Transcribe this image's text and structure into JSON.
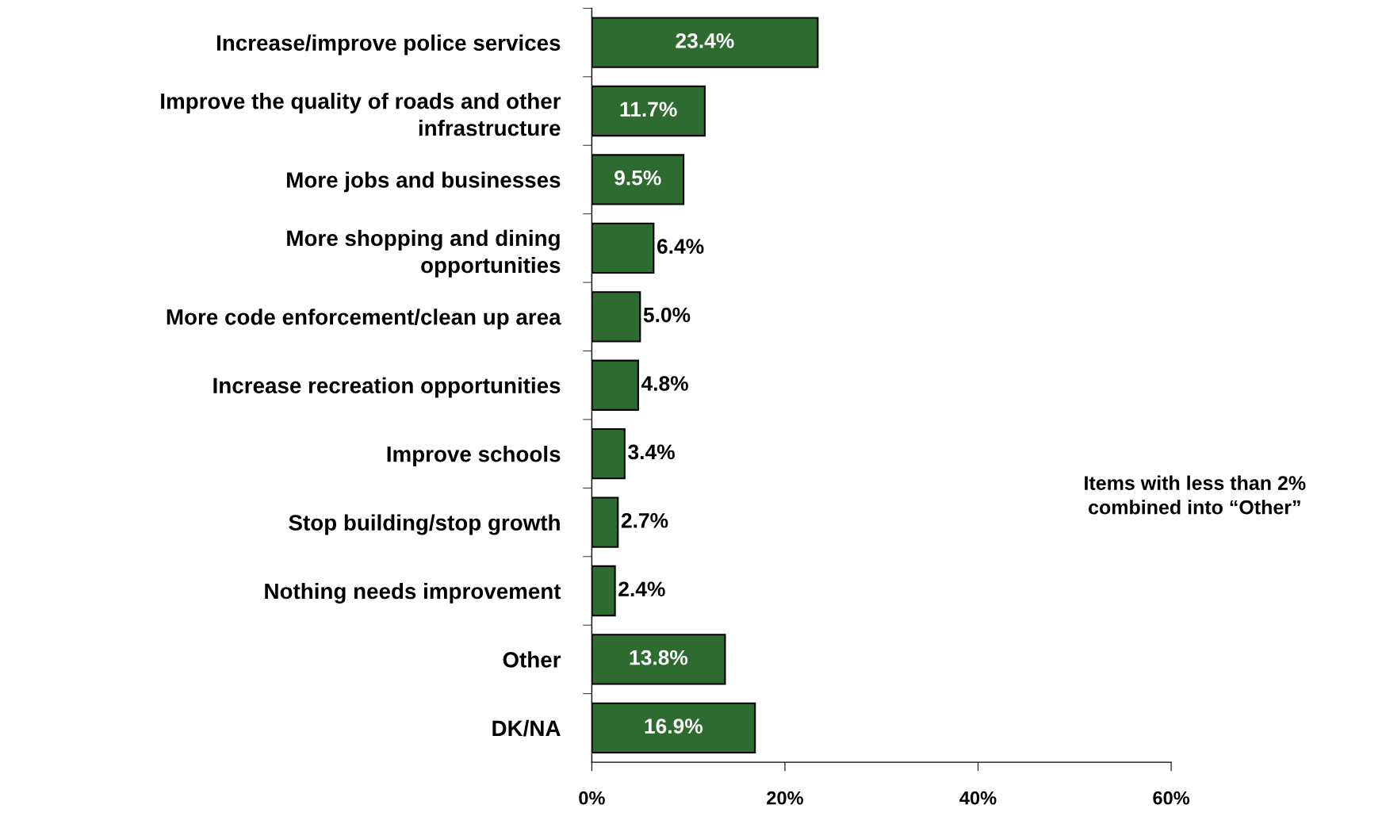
{
  "chart_data": {
    "type": "bar",
    "orientation": "horizontal",
    "categories": [
      "Increase/improve police services",
      "Improve the quality of roads and other\ninfrastructure",
      "More jobs and businesses",
      "More shopping and dining\nopportunities",
      "More code enforcement/clean up area",
      "Increase recreation opportunities",
      "Improve schools",
      "Stop building/stop growth",
      "Nothing needs improvement",
      "Other",
      "DK/NA"
    ],
    "values": [
      23.4,
      11.7,
      9.5,
      6.4,
      5.0,
      4.8,
      3.4,
      2.7,
      2.4,
      13.8,
      16.9
    ],
    "value_labels": [
      "23.4%",
      "11.7%",
      "9.5%",
      "6.4%",
      "5.0%",
      "4.8%",
      "3.4%",
      "2.7%",
      "2.4%",
      "13.8%",
      "16.9%"
    ],
    "color": "#2e6b30",
    "xlim": [
      0,
      60
    ],
    "xticks": [
      {
        "value": 0,
        "label": "0%"
      },
      {
        "value": 20,
        "label": "20%"
      },
      {
        "value": 40,
        "label": "40%"
      },
      {
        "value": 60,
        "label": "60%"
      }
    ],
    "grid": false,
    "legend": false,
    "annotations": [
      "Items with less than 2%\ncombined into “Other”"
    ]
  }
}
